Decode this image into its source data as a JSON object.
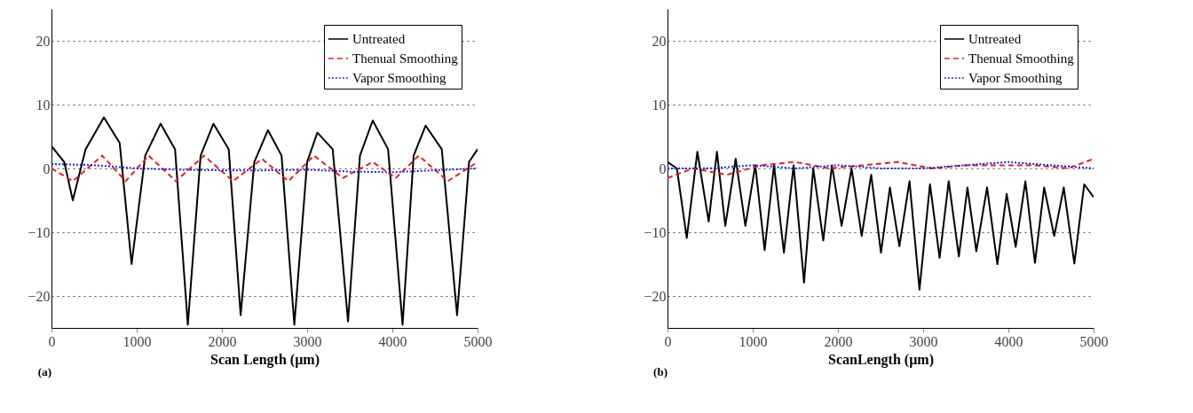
{
  "chart_data": [
    {
      "type": "line",
      "xlabel": "Scan Length (µm)",
      "xlim": [
        0,
        5000
      ],
      "xticks": [
        0,
        1000,
        2000,
        3000,
        4000,
        5000
      ],
      "ylim": [
        -25,
        25
      ],
      "yticks": [
        -20,
        -10,
        0,
        10,
        20
      ],
      "grid": "y",
      "legend": "top right",
      "annotations": [
        "(a)"
      ],
      "series": [
        {
          "name": "Untreated",
          "color": "#000000",
          "line_style": "solid",
          "x": [
            0,
            150,
            250,
            400,
            615,
            800,
            940,
            1100,
            1280,
            1450,
            1600,
            1750,
            1900,
            2080,
            2220,
            2380,
            2540,
            2700,
            2850,
            3000,
            3120,
            3300,
            3480,
            3620,
            3770,
            3950,
            4120,
            4250,
            4390,
            4580,
            4760,
            4900,
            5000
          ],
          "values": [
            3.5,
            1,
            -5,
            3,
            8,
            4,
            -15,
            2,
            7,
            3,
            -24.5,
            2,
            7,
            3,
            -23,
            1,
            6,
            2,
            -24.5,
            1,
            5.6,
            3,
            -24,
            2,
            7.5,
            3,
            -24.5,
            2,
            6.7,
            3,
            -23,
            1,
            3
          ]
        },
        {
          "name": "Thenual Smoothing",
          "color": "#e02020",
          "line_style": "dashed",
          "x": [
            0,
            250,
            595,
            870,
            1140,
            1460,
            1790,
            2130,
            2470,
            2780,
            3080,
            3420,
            3770,
            4040,
            4310,
            4650,
            5000
          ],
          "values": [
            0,
            -2,
            2,
            -2,
            2,
            -2,
            2,
            -2,
            1.5,
            -2,
            2,
            -1.5,
            1,
            -1.5,
            2,
            -2,
            1
          ]
        },
        {
          "name": "Vapor Smoothing",
          "color": "#2020d0",
          "line_style": "dotted",
          "x": [
            0,
            500,
            1000,
            1500,
            2000,
            2500,
            3000,
            3500,
            4000,
            4500,
            5000
          ],
          "values": [
            0.7,
            0.5,
            0,
            -0.2,
            -0.3,
            -0.3,
            -0.2,
            -0.5,
            -0.6,
            -0.3,
            0
          ]
        }
      ]
    },
    {
      "type": "line",
      "xlabel": "ScanLength (µm)",
      "xlim": [
        0,
        5000
      ],
      "xticks": [
        0,
        1000,
        2000,
        3000,
        4000,
        5000
      ],
      "ylim": [
        -25,
        25
      ],
      "yticks": [
        -20,
        -10,
        0,
        10,
        20
      ],
      "grid": "y",
      "legend": "top right",
      "annotations": [
        "(b)"
      ],
      "series": [
        {
          "name": "Untreated",
          "color": "#000000",
          "line_style": "solid",
          "x": [
            0,
            110,
            226,
            350,
            483,
            580,
            678,
            800,
            914,
            1030,
            1140,
            1250,
            1366,
            1480,
            1602,
            1710,
            1828,
            1930,
            2043,
            2160,
            2279,
            2390,
            2505,
            2610,
            2721,
            2840,
            2957,
            3080,
            3193,
            3300,
            3419,
            3520,
            3624,
            3750,
            3871,
            3980,
            4086,
            4200,
            4312,
            4420,
            4538,
            4650,
            4774,
            4890,
            5000
          ],
          "values": [
            1,
            0,
            -10.9,
            2.6,
            -8.3,
            2.6,
            -9,
            1.5,
            -9,
            0.5,
            -12.8,
            0.5,
            -13.2,
            0.5,
            -17.9,
            0,
            -11.3,
            0.5,
            -9,
            0,
            -10.6,
            -1,
            -13.2,
            -3,
            -12.2,
            -2,
            -19,
            -2.5,
            -14,
            -2,
            -13.8,
            -3,
            -13,
            -3,
            -15,
            -4,
            -12.3,
            -2,
            -14.8,
            -3,
            -10.6,
            -3,
            -14.9,
            -2.5,
            -4.5
          ]
        },
        {
          "name": "Thenual Smoothing",
          "color": "#e02020",
          "line_style": "dashed",
          "x": [
            0,
            300,
            700,
            1100,
            1500,
            1900,
            2300,
            2700,
            3100,
            3500,
            3900,
            4300,
            4700,
            5000
          ],
          "values": [
            -1.5,
            0,
            -1,
            0.5,
            1,
            0,
            0.5,
            1,
            0,
            0.5,
            0.5,
            0.5,
            0,
            1.5
          ]
        },
        {
          "name": "Vapor Smoothing",
          "color": "#2020d0",
          "line_style": "dotted",
          "x": [
            0,
            500,
            1000,
            1500,
            2000,
            2500,
            3000,
            3500,
            4000,
            4500,
            5000
          ],
          "values": [
            0,
            0,
            0.5,
            0,
            0.5,
            0,
            0,
            0.5,
            1,
            0.5,
            0
          ]
        }
      ]
    }
  ]
}
